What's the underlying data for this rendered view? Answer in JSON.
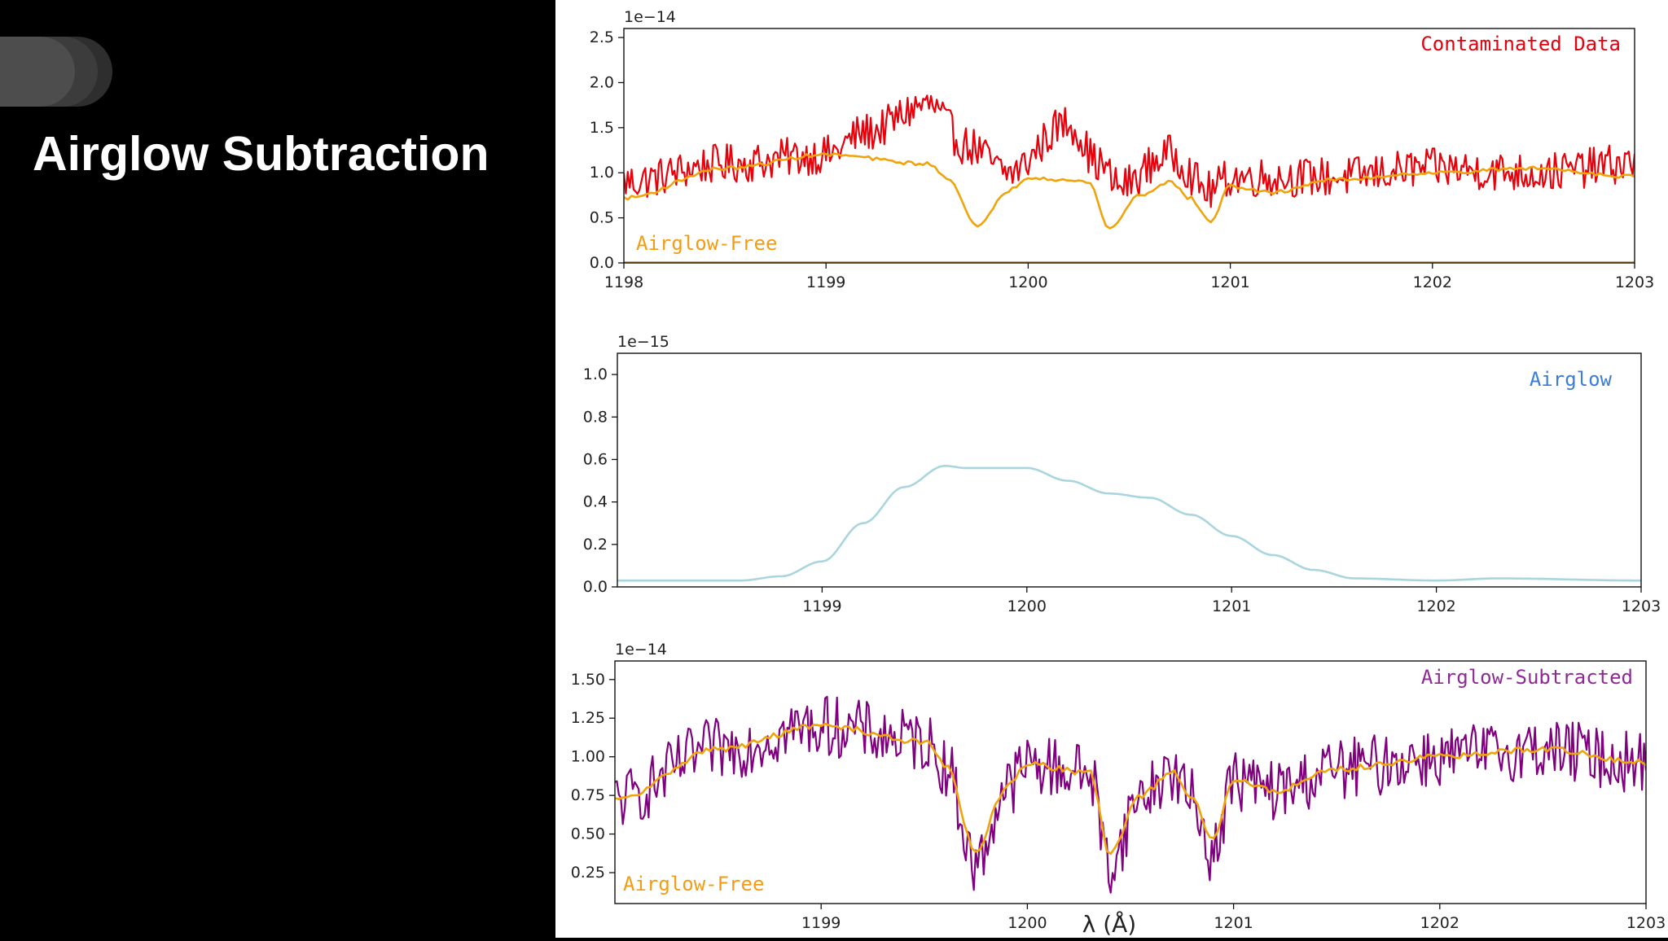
{
  "slide": {
    "title": "Airglow Subtraction"
  },
  "chart_data": [
    {
      "type": "line",
      "panel": "top",
      "title": "",
      "xlabel": "",
      "ylabel": "",
      "offset_label": "1e−14",
      "xlim": [
        1198,
        1203
      ],
      "ylim": [
        0.0,
        2.6
      ],
      "x_ticks": [
        1198,
        1199,
        1200,
        1201,
        1202,
        1203
      ],
      "y_ticks": [
        0.0,
        0.5,
        1.0,
        1.5,
        2.0,
        2.5
      ],
      "y_tick_labels": [
        "0.0",
        "0.5",
        "1.0",
        "1.5",
        "2.0",
        "2.5"
      ],
      "annotations": [
        {
          "text": "Contaminated Data",
          "color": "#e3000f"
        },
        {
          "text": "Airglow-Free",
          "color": "#f39c12"
        }
      ],
      "grid": false,
      "series": [
        {
          "name": "Contaminated Data",
          "color": "#e8000b",
          "noise": 0.22,
          "x": [
            1198.0,
            1198.5,
            1199.0,
            1199.2,
            1199.5,
            1199.7,
            1199.9,
            1200.2,
            1200.35,
            1200.45,
            1200.7,
            1200.9,
            1201.0,
            1201.5,
            1202.0,
            1202.5,
            1203.0
          ],
          "y": [
            0.9,
            1.1,
            1.2,
            1.45,
            1.75,
            1.3,
            1.0,
            1.55,
            1.1,
            0.85,
            1.2,
            0.8,
            0.95,
            0.95,
            1.05,
            1.0,
            1.1
          ]
        },
        {
          "name": "Airglow-Free",
          "color": "#f0a30a",
          "noise": 0.02,
          "x": [
            1198.0,
            1198.5,
            1199.0,
            1199.5,
            1199.6,
            1199.75,
            1199.9,
            1200.0,
            1200.3,
            1200.4,
            1200.55,
            1200.7,
            1200.8,
            1200.9,
            1201.0,
            1201.2,
            1201.5,
            1202.0,
            1202.5,
            1203.0
          ],
          "y": [
            0.72,
            1.05,
            1.2,
            1.1,
            0.95,
            0.4,
            0.8,
            0.95,
            0.9,
            0.38,
            0.75,
            0.9,
            0.72,
            0.46,
            0.85,
            0.78,
            0.92,
            1.0,
            1.05,
            0.96
          ]
        }
      ]
    },
    {
      "type": "line",
      "panel": "middle",
      "title": "",
      "xlabel": "",
      "ylabel": "",
      "offset_label": "1e−15",
      "xlim": [
        1198.0,
        1203.0
      ],
      "ylim": [
        0.0,
        1.1
      ],
      "x_ticks": [
        1199,
        1200,
        1201,
        1202,
        1203
      ],
      "y_ticks": [
        0.0,
        0.2,
        0.4,
        0.6,
        0.8,
        1.0
      ],
      "y_tick_labels": [
        "0.0",
        "0.2",
        "0.4",
        "0.6",
        "0.8",
        "1.0"
      ],
      "annotations": [
        {
          "text": "Airglow",
          "color": "#3b7dd8"
        }
      ],
      "grid": false,
      "series": [
        {
          "name": "Airglow",
          "color": "#a9d5de",
          "noise": 0.0,
          "x": [
            1198.0,
            1198.6,
            1198.8,
            1199.0,
            1199.2,
            1199.4,
            1199.6,
            1199.7,
            1200.0,
            1200.2,
            1200.4,
            1200.6,
            1200.8,
            1201.0,
            1201.2,
            1201.4,
            1201.6,
            1202.0,
            1202.3,
            1203.0
          ],
          "y": [
            0.03,
            0.03,
            0.05,
            0.12,
            0.3,
            0.47,
            0.57,
            0.56,
            0.56,
            0.5,
            0.44,
            0.42,
            0.34,
            0.24,
            0.15,
            0.08,
            0.04,
            0.03,
            0.04,
            0.03
          ]
        }
      ]
    },
    {
      "type": "line",
      "panel": "bottom",
      "title": "",
      "xlabel": "λ (Å)",
      "ylabel": "",
      "offset_label": "1e−14",
      "xlim": [
        1198.0,
        1203.0
      ],
      "ylim": [
        0.05,
        1.62
      ],
      "x_ticks": [
        1199,
        1200,
        1201,
        1202,
        1203
      ],
      "y_ticks": [
        0.25,
        0.5,
        0.75,
        1.0,
        1.25,
        1.5
      ],
      "y_tick_labels": [
        "0.25",
        "0.50",
        "0.75",
        "1.00",
        "1.25",
        "1.50"
      ],
      "annotations": [
        {
          "text": "Airglow-Subtracted",
          "color": "#8e2a96"
        },
        {
          "text": "Airglow-Free",
          "color": "#f39c12"
        }
      ],
      "grid": false,
      "series": [
        {
          "name": "Airglow-Subtracted",
          "color": "#800080",
          "noise": 0.2,
          "x": [
            1198.0,
            1198.5,
            1199.0,
            1199.5,
            1199.6,
            1199.75,
            1199.9,
            1200.0,
            1200.3,
            1200.4,
            1200.55,
            1200.7,
            1200.8,
            1200.9,
            1201.0,
            1201.2,
            1201.5,
            1202.0,
            1202.5,
            1203.0
          ],
          "y": [
            0.72,
            1.05,
            1.2,
            1.1,
            0.95,
            0.3,
            0.8,
            0.95,
            0.9,
            0.3,
            0.75,
            0.9,
            0.72,
            0.38,
            0.85,
            0.78,
            0.92,
            1.0,
            1.05,
            0.96
          ]
        },
        {
          "name": "Airglow-Free",
          "color": "#f0a30a",
          "noise": 0.02,
          "x": [
            1198.0,
            1198.5,
            1199.0,
            1199.5,
            1199.6,
            1199.75,
            1199.9,
            1200.0,
            1200.3,
            1200.4,
            1200.55,
            1200.7,
            1200.8,
            1200.9,
            1201.0,
            1201.2,
            1201.5,
            1202.0,
            1202.5,
            1203.0
          ],
          "y": [
            0.72,
            1.05,
            1.2,
            1.1,
            0.95,
            0.4,
            0.8,
            0.95,
            0.9,
            0.38,
            0.75,
            0.9,
            0.72,
            0.46,
            0.85,
            0.78,
            0.92,
            1.0,
            1.05,
            0.96
          ]
        }
      ]
    }
  ]
}
